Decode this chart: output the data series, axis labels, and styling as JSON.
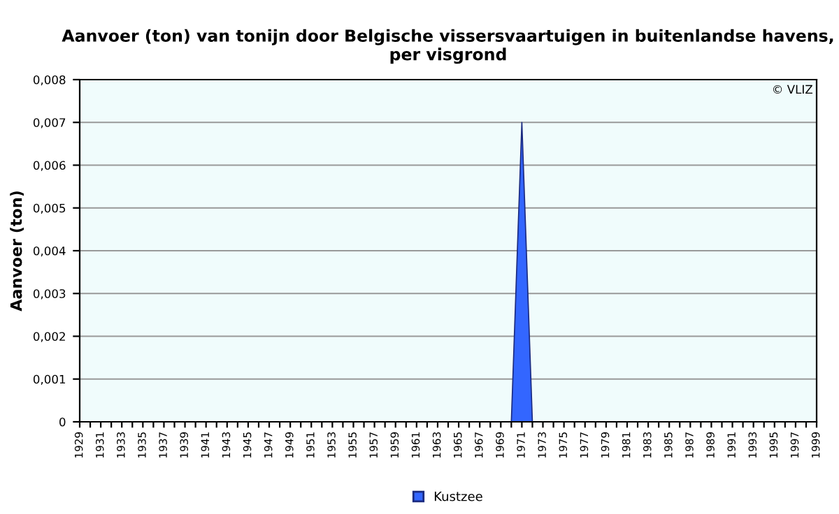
{
  "chart_data": {
    "type": "area",
    "title": "Aanvoer (ton) van tonijn door Belgische vissersvaartuigen in buitenlandse havens,\nper visgrond",
    "ylabel": "Aanvoer (ton)",
    "categories": [
      "1929",
      null,
      "1931",
      null,
      "1933",
      null,
      "1935",
      null,
      "1937",
      null,
      "1939",
      null,
      "1941",
      null,
      "1943",
      null,
      "1945",
      null,
      "1947",
      null,
      "1949",
      null,
      "1951",
      null,
      "1953",
      null,
      "1955",
      null,
      "1957",
      null,
      "1959",
      null,
      "1961",
      null,
      "1963",
      null,
      "1965",
      null,
      "1967",
      null,
      "1969",
      null,
      "1971",
      null,
      "1973",
      null,
      "1975",
      null,
      "1977",
      null,
      "1979",
      null,
      "1981",
      null,
      "1983",
      null,
      "1985",
      null,
      "1987",
      null,
      "1989",
      null,
      "1991",
      null,
      "1993",
      null,
      "1995",
      null,
      "1997",
      null,
      "1999"
    ],
    "series": [
      {
        "name": "Kustzee",
        "color": "#3366ff",
        "values": [
          0,
          0,
          0,
          0,
          0,
          0,
          0,
          0,
          0,
          0,
          0,
          0,
          0,
          0,
          0,
          0,
          0,
          0,
          0,
          0,
          0,
          0,
          0,
          0,
          0,
          0,
          0,
          0,
          0,
          0,
          0,
          0,
          0,
          0,
          0,
          0,
          0,
          0,
          0,
          0,
          0,
          0,
          0.007,
          0,
          0,
          0,
          0,
          0,
          0,
          0,
          0,
          0,
          0,
          0,
          0,
          0,
          0,
          0,
          0,
          0,
          0,
          0,
          0,
          0,
          0,
          0,
          0,
          0,
          0,
          0,
          0
        ]
      }
    ],
    "ylim": [
      0,
      0.008
    ],
    "yticks": [
      {
        "value": 0,
        "label": "0"
      },
      {
        "value": 0.001,
        "label": "0,001"
      },
      {
        "value": 0.002,
        "label": "0,002"
      },
      {
        "value": 0.003,
        "label": "0,003"
      },
      {
        "value": 0.004,
        "label": "0,004"
      },
      {
        "value": 0.005,
        "label": "0,005"
      },
      {
        "value": 0.006,
        "label": "0,006"
      },
      {
        "value": 0.007,
        "label": "0,007"
      },
      {
        "value": 0.008,
        "label": "0,008"
      }
    ],
    "grid": "y",
    "legend": "bottom",
    "annotations": [
      "© VLIZ"
    ]
  }
}
